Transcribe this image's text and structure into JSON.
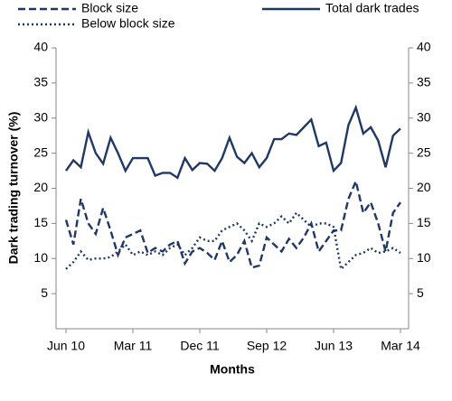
{
  "chart_data": {
    "type": "line",
    "ylabel": "Dark trading turnover (%)",
    "xlabel": "Months",
    "categories": [
      "Jun 10",
      null,
      null,
      null,
      null,
      null,
      null,
      null,
      null,
      "Mar 11",
      null,
      null,
      null,
      null,
      null,
      null,
      null,
      null,
      "Dec 11",
      null,
      null,
      null,
      null,
      null,
      null,
      null,
      null,
      "Sep 12",
      null,
      null,
      null,
      null,
      null,
      null,
      null,
      null,
      "Jun 13",
      null,
      null,
      null,
      null,
      null,
      null,
      null,
      null,
      "Mar 14"
    ],
    "series": [
      {
        "name": "Block size",
        "color": "#1f3864",
        "style": "dashed",
        "values": [
          15.5,
          12,
          18.5,
          15,
          13.5,
          17.2,
          14,
          10.5,
          13,
          13.5,
          14,
          10.8,
          11.5,
          11,
          12,
          12.5,
          9.3,
          11,
          11.5,
          10.8,
          9.8,
          12.5,
          9.5,
          10.5,
          12.5,
          8.7,
          9,
          13,
          12,
          11,
          12.8,
          11.5,
          13,
          15,
          11,
          12.5,
          14,
          14,
          18.5,
          21,
          16.5,
          18,
          15,
          11,
          16.5,
          18
        ]
      },
      {
        "name": "Total dark trades",
        "color": "#1f3864",
        "style": "solid",
        "values": [
          22.5,
          24,
          23,
          28,
          25,
          23.5,
          27.2,
          25,
          22.5,
          24.3,
          24.3,
          24.3,
          21.8,
          22.2,
          22.2,
          21.5,
          24.3,
          22.6,
          23.6,
          23.5,
          22.5,
          24.3,
          27.2,
          24.5,
          23.6,
          25,
          23,
          24.3,
          27,
          27,
          27.8,
          27.6,
          28.7,
          29.8,
          26,
          26.5,
          22.5,
          23.6,
          29,
          31.5,
          27.8,
          28.7,
          26.8,
          23,
          27.5,
          28.5
        ]
      },
      {
        "name": "Below block size",
        "color": "#1f3864",
        "style": "dotted",
        "values": [
          8.5,
          9.5,
          11,
          9.8,
          10,
          10,
          10.2,
          11,
          12,
          10.5,
          11,
          10.5,
          11,
          10.5,
          11.5,
          12,
          10.5,
          11.5,
          13,
          12.5,
          12.5,
          14,
          14.5,
          15,
          14,
          12.5,
          15,
          14.5,
          15,
          16,
          15,
          16.5,
          15.5,
          14.5,
          15,
          15,
          14.5,
          8.5,
          9.5,
          10.5,
          10.8,
          11.5,
          10.8,
          11,
          11.5,
          10.8
        ]
      }
    ],
    "ylim": [
      0,
      40
    ],
    "yticks": [
      5,
      10,
      15,
      20,
      25,
      30,
      35,
      40
    ],
    "y2lim": [
      0,
      40
    ],
    "y2ticks": [
      5,
      10,
      15,
      20,
      25,
      30,
      35,
      40
    ],
    "grid": false
  }
}
